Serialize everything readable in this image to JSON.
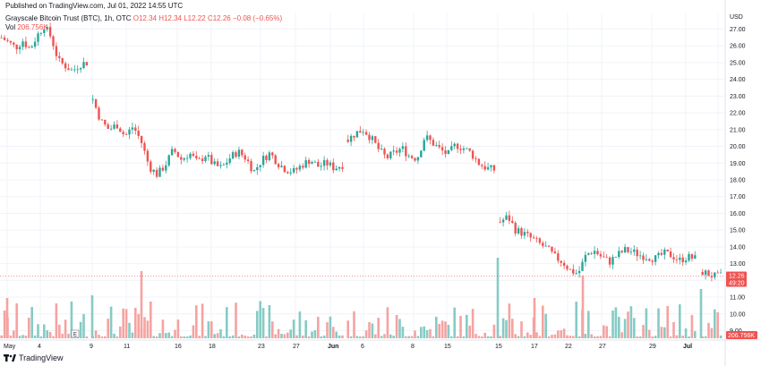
{
  "header": {
    "published": "Published on TradingView.com, Jul 01, 2022 14:55 UTC"
  },
  "legend": {
    "symbol": "Grayscale Bitcoin Trust (BTC), 1h, OTC",
    "o": "O12.34",
    "h": "H12.34",
    "l": "L12.22",
    "c": "C12.26",
    "chg": "−0.08 (−0.65%)",
    "vol_label": "Vol",
    "vol_value": "206.756K"
  },
  "axis": {
    "currency": "USD",
    "price_badge": "12.26",
    "time_badge": "49:20",
    "vol_badge": "206.756K",
    "marker": "E"
  },
  "footer": {
    "brand": "TradingView"
  },
  "colors": {
    "up": "#26a69a",
    "down": "#ef5350",
    "up_vol": "#86cbc4",
    "down_vol": "#f5a3a1",
    "grid": "#f0f3fa"
  },
  "chart_data": {
    "type": "candlestick",
    "y_ticks": [
      9.0,
      10.0,
      11.0,
      12.0,
      13.0,
      14.0,
      15.0,
      16.0,
      17.0,
      18.0,
      19.0,
      20.0,
      21.0,
      22.0,
      23.0,
      24.0,
      25.0,
      26.0,
      27.0
    ],
    "ylim": [
      9.0,
      27.0
    ],
    "x_labels": [
      "May",
      "4",
      "9",
      "11",
      "16",
      "18",
      "23",
      "27",
      "Jun",
      "6",
      "8",
      "15",
      "15",
      "17",
      "22",
      "27",
      "29",
      "Jul"
    ],
    "segments": [
      {
        "start": 0,
        "end": 100,
        "prices": [
          26.5,
          26.2,
          25.9,
          26.3,
          25.8,
          26.6,
          27.2,
          26.5,
          25.1,
          24.8,
          24.5,
          24.9,
          25.0
        ]
      },
      {
        "start": 102,
        "end": 385,
        "prices": [
          22.8,
          21.5,
          21.0,
          21.3,
          20.6,
          21.2,
          20.3,
          18.8,
          18.3,
          18.9,
          19.8,
          19.2,
          19.6,
          19.0,
          19.5,
          18.9,
          18.7,
          19.3,
          19.7,
          19.3,
          18.5,
          19.2,
          19.6,
          19.0,
          18.6,
          18.5,
          18.9,
          19.2,
          18.8,
          19.0,
          18.7,
          18.9
        ]
      },
      {
        "start": 387,
        "end": 555,
        "prices": [
          20.4,
          20.8,
          21.0,
          20.5,
          19.8,
          19.3,
          19.6,
          19.9,
          19.4,
          19.3,
          20.6,
          20.2,
          19.8,
          19.5,
          20.1,
          19.9,
          19.6,
          19.0,
          18.7,
          18.6
        ]
      },
      {
        "start": 557,
        "end": 780,
        "prices": [
          15.5,
          15.8,
          15.0,
          14.8,
          14.5,
          14.2,
          13.9,
          13.4,
          13.1,
          12.6,
          12.4,
          13.5,
          13.8,
          13.4,
          13.1,
          13.5,
          13.8,
          13.7,
          13.5,
          13.4,
          13.3,
          13.6,
          13.5,
          13.2,
          13.4,
          13.3
        ]
      },
      {
        "start": 783,
        "end": 808,
        "prices": [
          12.5,
          12.4,
          12.3,
          12.2,
          12.26
        ]
      }
    ]
  }
}
